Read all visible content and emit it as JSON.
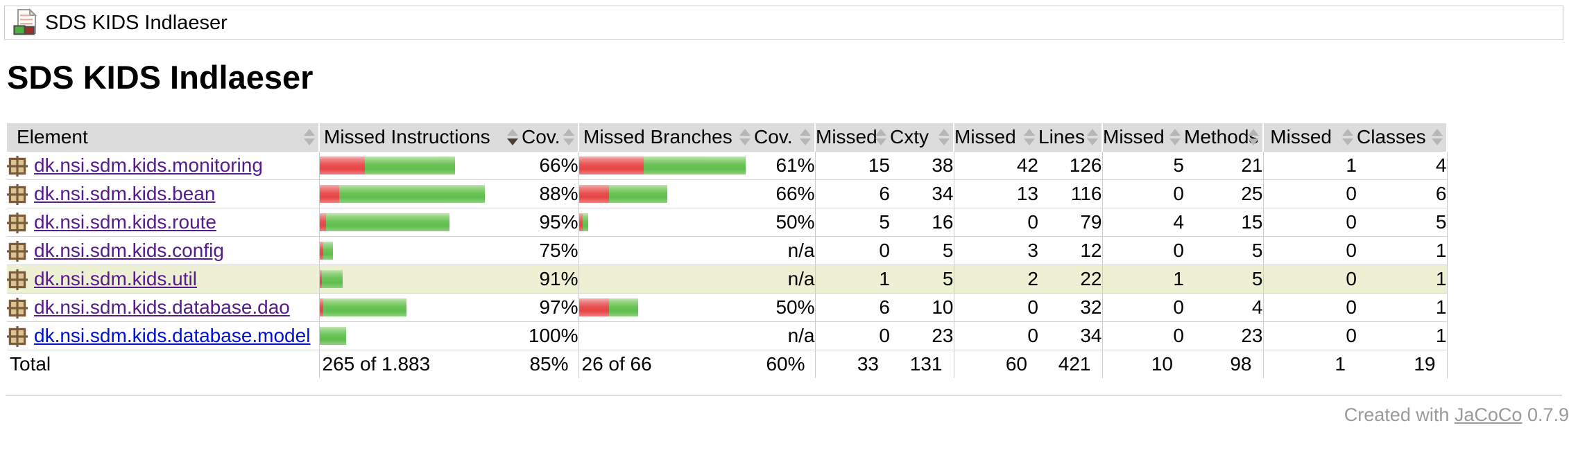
{
  "breadcrumb": {
    "label": "SDS KIDS Indlaeser"
  },
  "title": "SDS KIDS Indlaeser",
  "table": {
    "columns": [
      {
        "label": "Element",
        "align": "left",
        "sort": "none"
      },
      {
        "label": "Missed Instructions",
        "align": "left",
        "sort": "desc"
      },
      {
        "label": "Cov.",
        "align": "right",
        "sort": "none"
      },
      {
        "label": "Missed Branches",
        "align": "left",
        "sort": "none"
      },
      {
        "label": "Cov.",
        "align": "right",
        "sort": "none"
      },
      {
        "label": "Missed",
        "align": "right",
        "sort": "none"
      },
      {
        "label": "Cxty",
        "align": "right",
        "sort": "none"
      },
      {
        "label": "Missed",
        "align": "right",
        "sort": "none"
      },
      {
        "label": "Lines",
        "align": "right",
        "sort": "none"
      },
      {
        "label": "Missed",
        "align": "right",
        "sort": "none"
      },
      {
        "label": "Methods",
        "align": "right",
        "sort": "none"
      },
      {
        "label": "Missed",
        "align": "right",
        "sort": "none"
      },
      {
        "label": "Classes",
        "align": "right",
        "sort": "none"
      }
    ],
    "rows": [
      {
        "name": "dk.nsi.sdm.kids.monitoring",
        "link_state": "visited",
        "highlighted": false,
        "instr_bar": {
          "red": 65,
          "green": 130
        },
        "instr_cov": "66%",
        "branch_bar": {
          "red": 93,
          "green": 147
        },
        "branch_cov": "61%",
        "missed_cxty": 15,
        "cxty": 38,
        "missed_lines": 42,
        "lines": 126,
        "missed_methods": 5,
        "methods": 21,
        "missed_classes": 1,
        "classes": 4
      },
      {
        "name": "dk.nsi.sdm.kids.bean",
        "link_state": "visited",
        "highlighted": false,
        "instr_bar": {
          "red": 28,
          "green": 210
        },
        "instr_cov": "88%",
        "branch_bar": {
          "red": 43,
          "green": 84
        },
        "branch_cov": "66%",
        "missed_cxty": 6,
        "cxty": 34,
        "missed_lines": 13,
        "lines": 116,
        "missed_methods": 0,
        "methods": 25,
        "missed_classes": 0,
        "classes": 6
      },
      {
        "name": "dk.nsi.sdm.kids.route",
        "link_state": "visited",
        "highlighted": false,
        "instr_bar": {
          "red": 9,
          "green": 178
        },
        "instr_cov": "95%",
        "branch_bar": {
          "red": 5,
          "green": 8
        },
        "branch_cov": "50%",
        "missed_cxty": 5,
        "cxty": 16,
        "missed_lines": 0,
        "lines": 79,
        "missed_methods": 4,
        "methods": 15,
        "missed_classes": 0,
        "classes": 5
      },
      {
        "name": "dk.nsi.sdm.kids.config",
        "link_state": "visited",
        "highlighted": false,
        "instr_bar": {
          "red": 5,
          "green": 14
        },
        "instr_cov": "75%",
        "branch_bar": {
          "red": 0,
          "green": 0
        },
        "branch_cov": "n/a",
        "missed_cxty": 0,
        "cxty": 5,
        "missed_lines": 3,
        "lines": 12,
        "missed_methods": 0,
        "methods": 5,
        "missed_classes": 0,
        "classes": 1
      },
      {
        "name": "dk.nsi.sdm.kids.util",
        "link_state": "visited",
        "highlighted": true,
        "instr_bar": {
          "red": 3,
          "green": 30
        },
        "instr_cov": "91%",
        "branch_bar": {
          "red": 0,
          "green": 0
        },
        "branch_cov": "n/a",
        "missed_cxty": 1,
        "cxty": 5,
        "missed_lines": 2,
        "lines": 22,
        "missed_methods": 1,
        "methods": 5,
        "missed_classes": 0,
        "classes": 1
      },
      {
        "name": "dk.nsi.sdm.kids.database.dao",
        "link_state": "visited",
        "highlighted": false,
        "instr_bar": {
          "red": 5,
          "green": 120
        },
        "instr_cov": "97%",
        "branch_bar": {
          "red": 43,
          "green": 42
        },
        "branch_cov": "50%",
        "missed_cxty": 6,
        "cxty": 10,
        "missed_lines": 0,
        "lines": 32,
        "missed_methods": 0,
        "methods": 4,
        "missed_classes": 0,
        "classes": 1
      },
      {
        "name": "dk.nsi.sdm.kids.database.model",
        "link_state": "unvisited",
        "highlighted": false,
        "instr_bar": {
          "red": 0,
          "green": 38
        },
        "instr_cov": "100%",
        "branch_bar": {
          "red": 0,
          "green": 0
        },
        "branch_cov": "n/a",
        "missed_cxty": 0,
        "cxty": 23,
        "missed_lines": 0,
        "lines": 34,
        "missed_methods": 0,
        "methods": 23,
        "missed_classes": 0,
        "classes": 1
      }
    ],
    "total": {
      "label": "Total",
      "instructions": "265 of 1.883",
      "instr_cov": "85%",
      "branches": "26 of 66",
      "branch_cov": "60%",
      "missed_cxty": 33,
      "cxty": 131,
      "missed_lines": 60,
      "lines": 421,
      "missed_methods": 10,
      "methods": 98,
      "missed_classes": 1,
      "classes": 19
    }
  },
  "footer": {
    "prefix": "Created with",
    "link_label": "JaCoCo",
    "version": "0.7.9"
  },
  "colors": {
    "bar_red": "#e84d4d",
    "bar_green": "#62bf55",
    "row_highlight": "#eef0d4",
    "header_bg": "#dcdcdc",
    "link_visited": "#551a8b",
    "link_unvisited": "#0010cc"
  }
}
